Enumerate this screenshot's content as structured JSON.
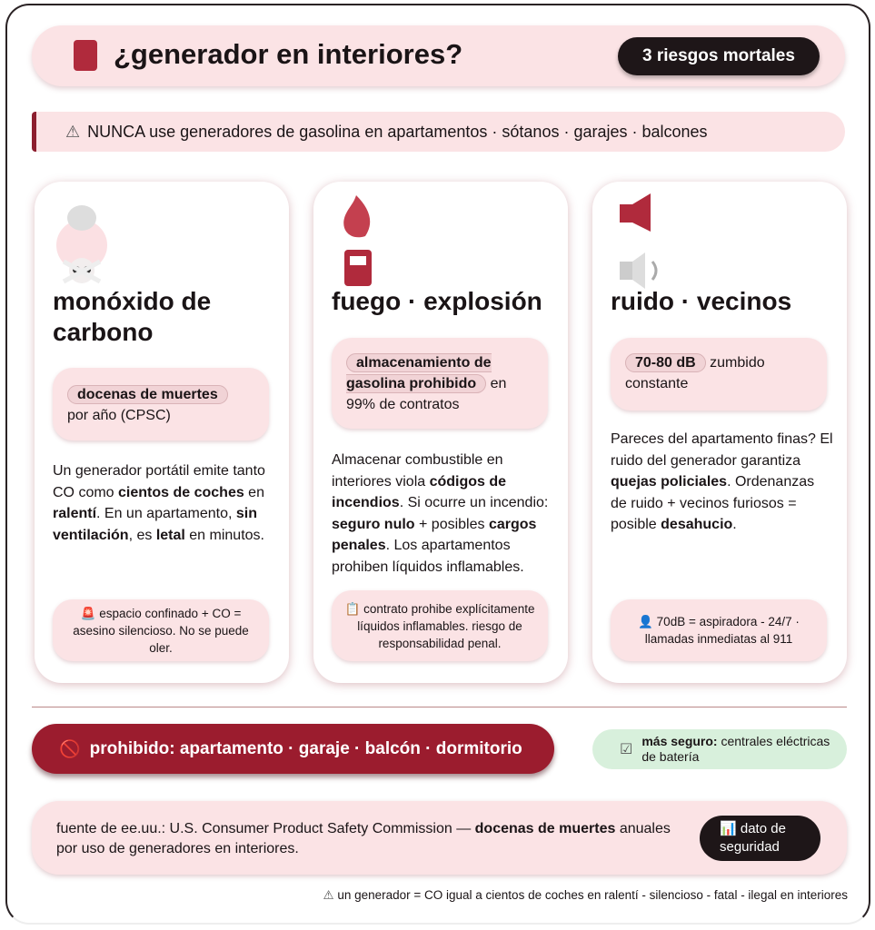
{
  "header": {
    "title": "¿generador en interiores?",
    "badge": "3 riesgos mortales",
    "icon": "fuel-pump-icon"
  },
  "warning": {
    "icon": "⚠",
    "text": "NUNCA use generadores de gasolina en apartamentos · sótanos · garajes · balcones"
  },
  "cards": [
    {
      "icon": "skull-smoke-icon",
      "title": "monóxido de carbono",
      "highlight_chip": "docenas de muertes",
      "highlight_rest": "por año (CPSC)",
      "body": [
        "Un generador portátil emite tanto CO como ",
        "cientos de coches",
        " en ",
        "ralentí",
        ". En un apartamento, ",
        "sin ventilación",
        ", es ",
        "letal",
        " en minutos."
      ],
      "note_icon": "🚨",
      "note": "espacio confinado + CO = asesino silencioso. No se puede oler."
    },
    {
      "icon": "fire-fuel-icon",
      "title": "fuego · explosión",
      "highlight_chip": "almacenamiento de gasolina prohibido",
      "highlight_rest": "en 99% de contratos",
      "body": [
        "Almacenar combustible en interiores viola ",
        "códigos de incendios",
        ". Si ocurre un incendio: ",
        "seguro nulo",
        " + posibles ",
        "cargos penales",
        ". Los apartamentos prohiben líquidos inflamables."
      ],
      "note_icon": "📋",
      "note": "contrato prohibe explícitamente líquidos inflamables. riesgo de responsabilidad penal."
    },
    {
      "icon": "megaphone-speaker-icon",
      "title": "ruido · vecinos",
      "highlight_chip": "70-80 dB",
      "highlight_rest": "zumbido constante",
      "body": [
        "Pareces del apartamento finas? El ruido del generador garantiza ",
        "quejas policiales",
        ". Ordenanzas de ruido + vecinos furiosos = posible ",
        "desahucio",
        "."
      ],
      "note_icon": "👤",
      "note": "70dB = aspiradora - 24/7 · llamadas inmediatas al 911"
    }
  ],
  "prohibited": {
    "icon": "🚫",
    "text": "prohibido: apartamento · garaje · balcón · dormitorio"
  },
  "safer": {
    "icon": "☑",
    "bold": "más seguro:",
    "text": "centrales eléctricas de batería"
  },
  "source": {
    "prefix": "fuente de ee.uu.: U.S. Consumer Product Safety Commission — ",
    "bold": "docenas de muertes",
    "suffix": " anuales por uso de generadores en interiores.",
    "badge_icon": "📊",
    "badge": "dato de seguridad"
  },
  "footer": {
    "icon": "⚠",
    "text": "un generador = CO igual a cientos de coches en ralentí - silencioso - fatal - ilegal en interiores"
  },
  "colors": {
    "accent": "#9b1c2e",
    "pink": "#fbe3e5",
    "dark": "#1e1618",
    "green": "#d8f0dc"
  }
}
